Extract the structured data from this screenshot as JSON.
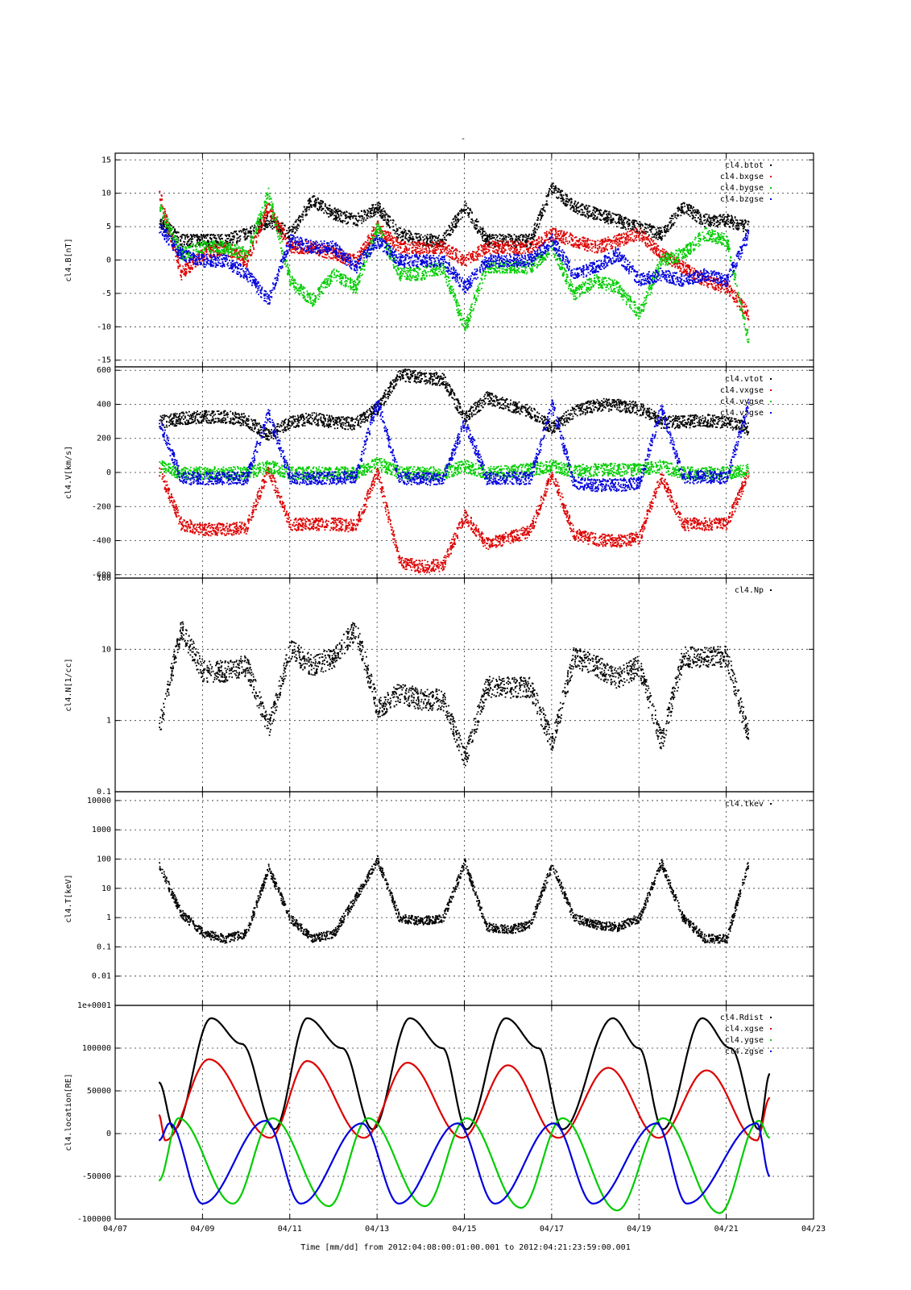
{
  "top_mark": "-",
  "footer": {
    "time_label": "Time [mm/dd]",
    "from_label": "from",
    "from_value": "2012:04:08:00:01:00.001",
    "to_label": "to",
    "to_value": "2012:04:21:23:59:00.001"
  },
  "colors": {
    "black": "#000000",
    "red": "#dd0000",
    "blue": "#0000dd",
    "green": "#00cc00"
  },
  "chart_data": [
    {
      "type": "scatter",
      "ylabel": "cl4.B[nT]",
      "ylim": [
        -16,
        16
      ],
      "yticks": [
        15,
        10,
        5,
        0,
        -5,
        -10,
        -15
      ],
      "ytick_labels": [
        "15",
        "10",
        "5",
        "0",
        "-5",
        "-10",
        "-15"
      ],
      "xlim": [
        "04/07",
        "04/23"
      ],
      "grid": true,
      "legend": "top-right",
      "series": [
        {
          "name": "cl4.btot",
          "color": "#000000",
          "x": [
            "04/08.0",
            "04/08.5",
            "04/09.0",
            "04/09.5",
            "04/10.0",
            "04/10.5",
            "04/11.0",
            "04/11.5",
            "04/12.0",
            "04/12.5",
            "04/13.0",
            "04/13.5",
            "04/14.0",
            "04/14.5",
            "04/15.0",
            "04/15.5",
            "04/16.0",
            "04/16.5",
            "04/17.0",
            "04/17.5",
            "04/18.0",
            "04/18.5",
            "04/19.0",
            "04/19.5",
            "04/20.0",
            "04/20.5",
            "04/21.0",
            "04/21.5"
          ],
          "y": [
            6,
            3,
            3,
            3,
            4,
            6,
            4,
            9,
            7,
            6,
            8,
            4,
            3,
            3,
            8,
            3,
            3,
            3,
            11,
            8,
            7,
            6,
            5,
            4,
            8,
            6,
            6,
            5
          ]
        },
        {
          "name": "cl4.bxgse",
          "color": "#dd0000",
          "x": [
            "04/08.0",
            "04/08.5",
            "04/09.0",
            "04/09.5",
            "04/10.0",
            "04/10.5",
            "04/11.0",
            "04/11.5",
            "04/12.0",
            "04/12.5",
            "04/13.0",
            "04/13.5",
            "04/14.0",
            "04/14.5",
            "04/15.0",
            "04/15.5",
            "04/16.0",
            "04/16.5",
            "04/17.0",
            "04/17.5",
            "04/18.0",
            "04/18.5",
            "04/19.0",
            "04/19.5",
            "04/20.0",
            "04/20.5",
            "04/21.0",
            "04/21.5"
          ],
          "y": [
            10,
            -2,
            1,
            2,
            0,
            8,
            2,
            2,
            1,
            0,
            5,
            2,
            2,
            2,
            0,
            2,
            2,
            2,
            4,
            3,
            2,
            3,
            4,
            1,
            -1,
            -3,
            -4,
            -8
          ]
        },
        {
          "name": "cl4.bygse",
          "color": "#00cc00",
          "x": [
            "04/08.0",
            "04/08.5",
            "04/09.0",
            "04/09.5",
            "04/10.0",
            "04/10.5",
            "04/11.0",
            "04/11.5",
            "04/12.0",
            "04/12.5",
            "04/13.0",
            "04/13.5",
            "04/14.0",
            "04/14.5",
            "04/15.0",
            "04/15.5",
            "04/16.0",
            "04/16.5",
            "04/17.0",
            "04/17.5",
            "04/18.0",
            "04/18.5",
            "04/19.0",
            "04/19.5",
            "04/20.0",
            "04/20.5",
            "04/21.0",
            "04/21.5"
          ],
          "y": [
            8,
            1,
            2,
            2,
            1,
            10,
            -3,
            -6,
            -2,
            -4,
            5,
            -2,
            -2,
            -1,
            -10,
            -1,
            -1,
            -1,
            2,
            -5,
            -3,
            -4,
            -8,
            0,
            1,
            4,
            3,
            -12
          ]
        },
        {
          "name": "cl4.bzgse",
          "color": "#0000dd",
          "x": [
            "04/08.0",
            "04/08.5",
            "04/09.0",
            "04/09.5",
            "04/10.0",
            "04/10.5",
            "04/11.0",
            "04/11.5",
            "04/12.0",
            "04/12.5",
            "04/13.0",
            "04/13.5",
            "04/14.0",
            "04/14.5",
            "04/15.0",
            "04/15.5",
            "04/16.0",
            "04/16.5",
            "04/17.0",
            "04/17.5",
            "04/18.0",
            "04/18.5",
            "04/19.0",
            "04/19.5",
            "04/20.0",
            "04/20.5",
            "04/21.0",
            "04/21.5"
          ],
          "y": [
            5,
            1,
            0,
            0,
            -2,
            -6,
            3,
            2,
            2,
            -1,
            3,
            0,
            0,
            0,
            -4,
            0,
            0,
            0,
            3,
            -2,
            -1,
            1,
            -3,
            -2,
            -3,
            -2,
            -3,
            4
          ]
        }
      ]
    },
    {
      "type": "scatter",
      "ylabel": "cl4.V[km/s]",
      "ylim": [
        -620,
        620
      ],
      "yticks": [
        600,
        400,
        200,
        0,
        -200,
        -400,
        -600
      ],
      "ytick_labels": [
        "600",
        "400",
        "200",
        "0",
        "-200",
        "-400",
        "-600"
      ],
      "xlim": [
        "04/07",
        "04/23"
      ],
      "grid": true,
      "legend": "top-right",
      "series": [
        {
          "name": "cl4.vtot",
          "color": "#000000",
          "x": [
            "04/08.0",
            "04/08.5",
            "04/09.0",
            "04/09.5",
            "04/10.0",
            "04/10.5",
            "04/11.0",
            "04/11.5",
            "04/12.0",
            "04/12.5",
            "04/13.0",
            "04/13.5",
            "04/14.0",
            "04/14.5",
            "04/15.0",
            "04/15.5",
            "04/16.0",
            "04/16.5",
            "04/17.0",
            "04/17.5",
            "04/18.0",
            "04/18.5",
            "04/19.0",
            "04/19.5",
            "04/20.0",
            "04/20.5",
            "04/21.0",
            "04/21.5"
          ],
          "y": [
            300,
            320,
            330,
            330,
            310,
            220,
            300,
            320,
            300,
            290,
            380,
            580,
            560,
            550,
            320,
            440,
            400,
            360,
            260,
            360,
            400,
            400,
            380,
            300,
            300,
            310,
            300,
            260
          ]
        },
        {
          "name": "cl4.vxgse",
          "color": "#dd0000",
          "x": [
            "04/08.0",
            "04/08.5",
            "04/09.0",
            "04/09.5",
            "04/10.0",
            "04/10.5",
            "04/11.0",
            "04/11.5",
            "04/12.0",
            "04/12.5",
            "04/13.0",
            "04/13.5",
            "04/14.0",
            "04/14.5",
            "04/15.0",
            "04/15.5",
            "04/16.0",
            "04/16.5",
            "04/17.0",
            "04/17.5",
            "04/18.0",
            "04/18.5",
            "04/19.0",
            "04/19.5",
            "04/20.0",
            "04/20.5",
            "04/21.0",
            "04/21.5"
          ],
          "y": [
            20,
            -300,
            -330,
            -330,
            -320,
            20,
            -300,
            -300,
            -300,
            -310,
            0,
            -520,
            -550,
            -540,
            -250,
            -420,
            -380,
            -340,
            0,
            -360,
            -390,
            -400,
            -380,
            -20,
            -300,
            -300,
            -300,
            0
          ]
        },
        {
          "name": "cl4.vygse",
          "color": "#00cc00",
          "x": [
            "04/08.0",
            "04/08.5",
            "04/09.0",
            "04/09.5",
            "04/10.0",
            "04/10.5",
            "04/11.0",
            "04/11.5",
            "04/12.0",
            "04/12.5",
            "04/13.0",
            "04/13.5",
            "04/14.0",
            "04/14.5",
            "04/15.0",
            "04/15.5",
            "04/16.0",
            "04/16.5",
            "04/17.0",
            "04/17.5",
            "04/18.0",
            "04/18.5",
            "04/19.0",
            "04/19.5",
            "04/20.0",
            "04/20.5",
            "04/21.0",
            "04/21.5"
          ],
          "y": [
            40,
            0,
            0,
            0,
            0,
            40,
            0,
            0,
            0,
            0,
            60,
            0,
            0,
            0,
            40,
            0,
            10,
            20,
            40,
            10,
            20,
            20,
            20,
            40,
            0,
            0,
            0,
            20
          ]
        },
        {
          "name": "cl4.vzgse",
          "color": "#0000dd",
          "x": [
            "04/08.0",
            "04/08.5",
            "04/09.0",
            "04/09.5",
            "04/10.0",
            "04/10.5",
            "04/11.0",
            "04/11.5",
            "04/12.0",
            "04/12.5",
            "04/13.0",
            "04/13.5",
            "04/14.0",
            "04/14.5",
            "04/15.0",
            "04/15.5",
            "04/16.0",
            "04/16.5",
            "04/17.0",
            "04/17.5",
            "04/18.0",
            "04/18.5",
            "04/19.0",
            "04/19.5",
            "04/20.0",
            "04/20.5",
            "04/21.0",
            "04/21.5"
          ],
          "y": [
            300,
            -30,
            -30,
            -30,
            -30,
            350,
            -30,
            -30,
            -30,
            -20,
            420,
            -30,
            -30,
            -40,
            300,
            -30,
            -30,
            -30,
            400,
            -60,
            -70,
            -70,
            -60,
            380,
            -30,
            -20,
            -30,
            400
          ]
        }
      ]
    },
    {
      "type": "scatter",
      "ylabel": "cl4.N[1/cc]",
      "yscale": "log",
      "ylim": [
        0.1,
        100
      ],
      "yticks": [
        100,
        10,
        1,
        0.1
      ],
      "ytick_labels": [
        "100",
        "10",
        "1",
        "0.1"
      ],
      "xlim": [
        "04/07",
        "04/23"
      ],
      "grid": true,
      "legend": "top-right",
      "series": [
        {
          "name": "cl4.Np",
          "color": "#000000",
          "x": [
            "04/08.0",
            "04/08.5",
            "04/09.0",
            "04/09.5",
            "04/10.0",
            "04/10.5",
            "04/11.0",
            "04/11.5",
            "04/12.0",
            "04/12.5",
            "04/13.0",
            "04/13.5",
            "04/14.0",
            "04/14.5",
            "04/15.0",
            "04/15.5",
            "04/16.0",
            "04/16.5",
            "04/17.0",
            "04/17.5",
            "04/18.0",
            "04/18.5",
            "04/19.0",
            "04/19.5",
            "04/20.0",
            "04/20.5",
            "04/21.0",
            "04/21.5"
          ],
          "y": [
            0.8,
            20,
            5,
            5,
            6,
            0.8,
            10,
            6,
            8,
            20,
            1.5,
            2.5,
            2,
            2,
            0.3,
            3,
            3,
            3,
            0.5,
            8,
            6,
            4,
            6,
            0.5,
            8,
            8,
            8,
            0.6
          ]
        }
      ]
    },
    {
      "type": "scatter",
      "ylabel": "cl4.T[keV]",
      "yscale": "log",
      "ylim": [
        0.001,
        20000
      ],
      "yticks": [
        10000,
        1000,
        100,
        10,
        1,
        0.1,
        0.01
      ],
      "ytick_labels": [
        "10000",
        "1000",
        "100",
        "10",
        "1",
        "0.1",
        "0.01"
      ],
      "bottom_label": "1e+0001",
      "xlim": [
        "04/07",
        "04/23"
      ],
      "grid": true,
      "legend": "top-right",
      "series": [
        {
          "name": "cl4.tkev",
          "color": "#000000",
          "x": [
            "04/08.0",
            "04/08.5",
            "04/09.0",
            "04/09.5",
            "04/10.0",
            "04/10.5",
            "04/11.0",
            "04/11.5",
            "04/12.0",
            "04/12.5",
            "04/13.0",
            "04/13.5",
            "04/14.0",
            "04/14.5",
            "04/15.0",
            "04/15.5",
            "04/16.0",
            "04/16.5",
            "04/17.0",
            "04/17.5",
            "04/18.0",
            "04/18.5",
            "04/19.0",
            "04/19.5",
            "04/20.0",
            "04/20.5",
            "04/21.0",
            "04/21.5"
          ],
          "y": [
            60,
            1.5,
            0.3,
            0.2,
            0.3,
            50,
            1,
            0.2,
            0.3,
            5,
            100,
            1,
            0.8,
            1,
            80,
            0.5,
            0.4,
            0.6,
            70,
            1,
            0.6,
            0.5,
            1,
            80,
            1,
            0.2,
            0.2,
            80
          ]
        }
      ]
    },
    {
      "type": "line",
      "ylabel": "cl4.location[RE]",
      "ylim": [
        -100000,
        150000
      ],
      "yticks": [
        100000,
        50000,
        0,
        -50000,
        -100000
      ],
      "ytick_labels": [
        "100000",
        "50000",
        "0",
        "-50000",
        "-100000"
      ],
      "xlim": [
        "04/07",
        "04/23"
      ],
      "xticks": [
        "04/07",
        "04/09",
        "04/11",
        "04/13",
        "04/15",
        "04/17",
        "04/19",
        "04/21",
        "04/23"
      ],
      "grid": true,
      "legend": "top-right",
      "series": [
        {
          "name": "cl4.Rdist",
          "color": "#000000",
          "x": [
            "04/08.00",
            "04/08.35",
            "04/09.20",
            "04/09.90",
            "04/10.65",
            "04/11.40",
            "04/12.20",
            "04/12.90",
            "04/13.75",
            "04/14.50",
            "04/15.05",
            "04/15.95",
            "04/16.70",
            "04/17.25",
            "04/18.40",
            "04/19.00",
            "04/19.55",
            "04/20.45",
            "04/21.10",
            "04/21.75",
            "04/22.00"
          ],
          "y": [
            60000,
            5000,
            135000,
            105000,
            5000,
            135000,
            100000,
            5000,
            135000,
            100000,
            5000,
            135000,
            100000,
            5000,
            135000,
            100000,
            5000,
            135000,
            100000,
            5000,
            70000
          ]
        },
        {
          "name": "cl4.xgse",
          "color": "#dd0000",
          "x": [
            "04/08.00",
            "04/08.15",
            "04/09.15",
            "04/10.55",
            "04/11.40",
            "04/12.70",
            "04/13.70",
            "04/14.95",
            "04/16.00",
            "04/17.15",
            "04/18.30",
            "04/19.45",
            "04/20.55",
            "04/21.70",
            "04/22.00"
          ],
          "y": [
            22000,
            -8000,
            87000,
            -5000,
            85000,
            -5000,
            83000,
            -5000,
            80000,
            -5000,
            77000,
            -5000,
            74000,
            -8000,
            42000
          ]
        },
        {
          "name": "cl4.ygse",
          "color": "#00cc00",
          "x": [
            "04/08.00",
            "04/08.45",
            "04/09.70",
            "04/10.60",
            "04/11.90",
            "04/12.80",
            "04/14.10",
            "04/15.05",
            "04/16.30",
            "04/17.25",
            "04/18.50",
            "04/19.55",
            "04/20.85",
            "04/21.75",
            "04/22.00"
          ],
          "y": [
            -55000,
            18000,
            -82000,
            18000,
            -85000,
            18000,
            -85000,
            18000,
            -87000,
            18000,
            -90000,
            18000,
            -93000,
            15000,
            -5000
          ]
        },
        {
          "name": "cl4.zgse",
          "color": "#0000dd",
          "x": [
            "04/08.00",
            "04/08.25",
            "04/09.00",
            "04/10.45",
            "04/11.25",
            "04/12.65",
            "04/13.50",
            "04/14.85",
            "04/15.70",
            "04/17.05",
            "04/17.95",
            "04/19.40",
            "04/20.10",
            "04/21.70",
            "04/22.00"
          ],
          "y": [
            -8000,
            12000,
            -82000,
            15000,
            -82000,
            12000,
            -82000,
            12000,
            -82000,
            12000,
            -82000,
            12000,
            -82000,
            12000,
            -50000
          ]
        }
      ]
    }
  ]
}
